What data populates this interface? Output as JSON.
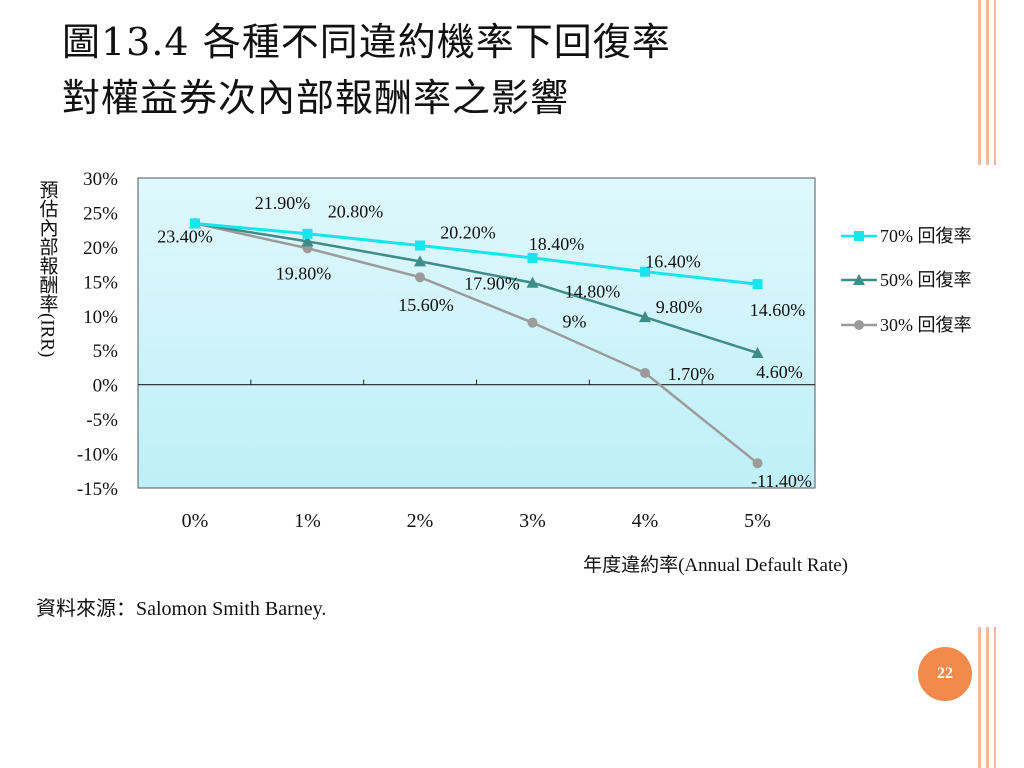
{
  "slide": {
    "title_line1": "圖13.4 各種不同違約機率下回復率",
    "title_line2": "對權益券次內部報酬率之影響",
    "source": "資料來源：Salomon Smith Barney.",
    "page_number": "22"
  },
  "colors": {
    "series_70": "#16e6ec",
    "series_50": "#3f8c88",
    "series_30": "#9b9b9b",
    "plot_top": "#dff8fc",
    "plot_bottom": "#bfeff8",
    "accent": "#f28a4c",
    "border_deco": "#f2b7a0"
  },
  "chart_data": {
    "type": "line",
    "title": "",
    "xlabel": "年度違約率(Annual Default Rate)",
    "ylabel": "預估內部報酬率(IRR)",
    "categories": [
      "0%",
      "1%",
      "2%",
      "3%",
      "4%",
      "5%"
    ],
    "ylim": [
      -15,
      30
    ],
    "yticks": [
      "30%",
      "25%",
      "20%",
      "15%",
      "10%",
      "5%",
      "0%",
      "-5%",
      "-10%",
      "-15%"
    ],
    "grid": true,
    "legend_position": "right",
    "series": [
      {
        "name": "70% 回復率",
        "marker": "square",
        "values": [
          23.4,
          21.9,
          20.2,
          18.4,
          16.4,
          14.6
        ]
      },
      {
        "name": "50% 回復率",
        "marker": "triangle",
        "values": [
          23.4,
          20.8,
          17.9,
          14.8,
          9.8,
          4.6
        ]
      },
      {
        "name": "30% 回復率",
        "marker": "circle",
        "values": [
          23.4,
          19.8,
          15.6,
          9.0,
          1.7,
          -11.4
        ]
      }
    ],
    "data_labels": [
      "23.40%",
      "21.90%",
      "20.20%",
      "18.40%",
      "16.40%",
      "14.60%",
      "20.80%",
      "17.90%",
      "14.80%",
      "9.80%",
      "4.60%",
      "19.80%",
      "15.60%",
      "9%",
      "1.70%",
      "-11.40%"
    ]
  }
}
